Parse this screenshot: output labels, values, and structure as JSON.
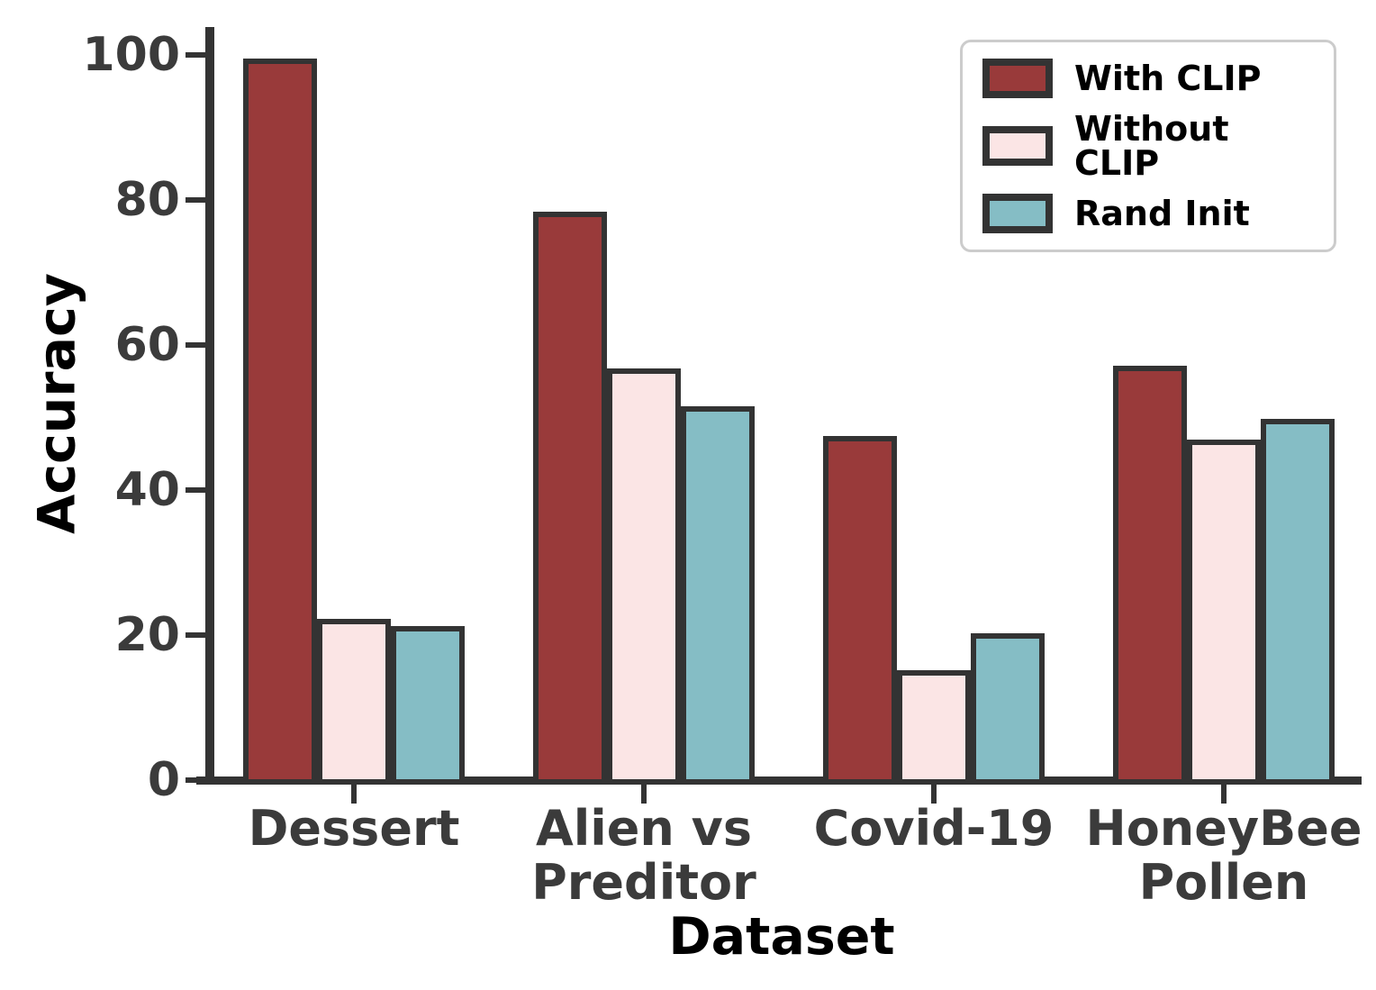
{
  "chart_data": {
    "type": "bar",
    "title": "",
    "xlabel": "Dataset",
    "ylabel": "Accuracy",
    "ylim": [
      0,
      100
    ],
    "yticks": [
      0,
      20,
      40,
      60,
      80,
      100
    ],
    "grid": false,
    "legend_position": "upper right",
    "categories": [
      "Dessert",
      "Alien vs\nPreditor",
      "Covid-19",
      "HoneyBee\nPollen"
    ],
    "series": [
      {
        "name": "With CLIP",
        "color": "#993a3a",
        "values": [
          99.5,
          78.4,
          47.4,
          57.2
        ]
      },
      {
        "name": "Without CLIP",
        "color": "#fbe5e5",
        "values": [
          22.2,
          56.8,
          15.1,
          46.9
        ]
      },
      {
        "name": "Rand Init",
        "color": "#85bdc5",
        "values": [
          21.3,
          51.5,
          20.2,
          49.8
        ]
      }
    ],
    "bar_edge_color": "#333333",
    "axis_color": "#333333",
    "tick_label_color": "#3b3b3b",
    "axis_label_color": "#000000"
  }
}
